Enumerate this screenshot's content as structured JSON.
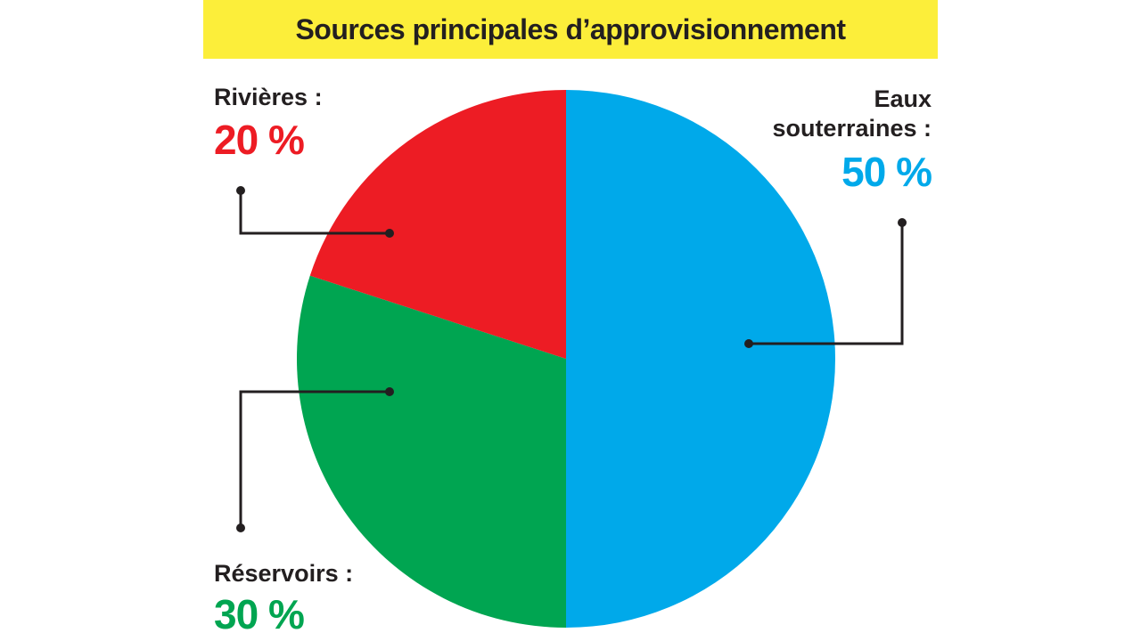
{
  "chart_data": {
    "type": "pie",
    "title": "Sources principales d’approvisionnement",
    "categories": [
      "Eaux souterraines :",
      "Réservoirs :",
      "Rivières :"
    ],
    "values": [
      50,
      30,
      20
    ],
    "value_labels": [
      "50 %",
      "30 %",
      "20 %"
    ],
    "colors": [
      "#00a9ea",
      "#00a551",
      "#ed1c24"
    ]
  }
}
